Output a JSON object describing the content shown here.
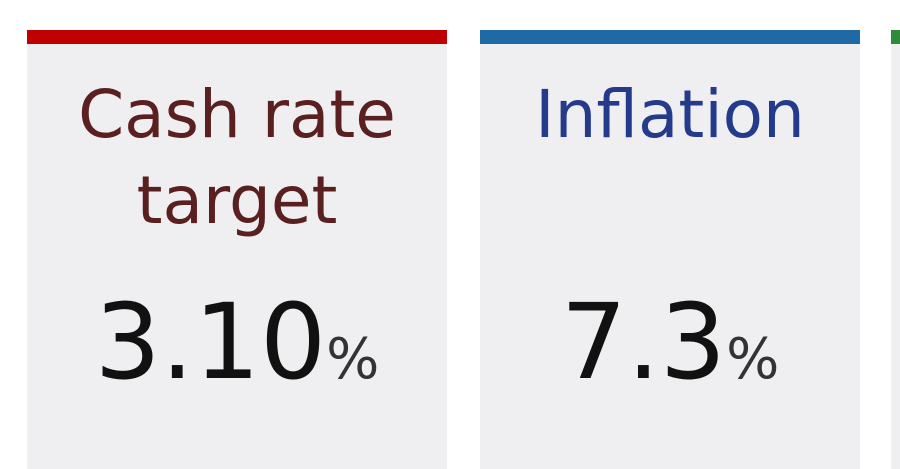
{
  "cards": [
    {
      "title": "Cash rate target",
      "value": "3.10",
      "unit": "%",
      "accent": "#c00000",
      "title_color": "#5a1f1f"
    },
    {
      "title": "Inflation",
      "value": "7.3",
      "unit": "%",
      "accent": "#1f6aa5",
      "title_color": "#243b8c"
    },
    {
      "accent": "#2e8b3a"
    }
  ]
}
